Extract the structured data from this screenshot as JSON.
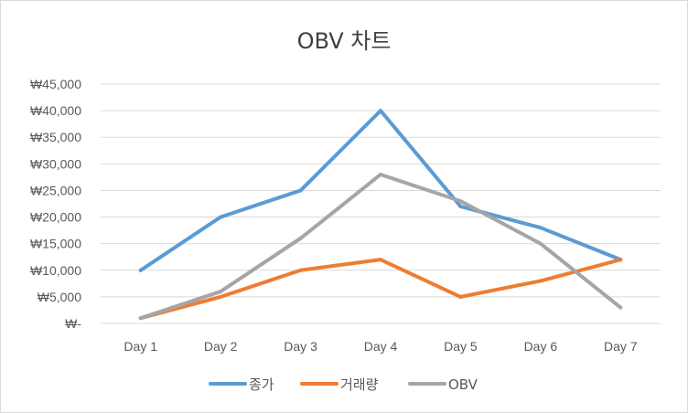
{
  "chart_data": {
    "type": "line",
    "title": "OBV 차트",
    "categories": [
      "Day 1",
      "Day 2",
      "Day 3",
      "Day 4",
      "Day 5",
      "Day 6",
      "Day 7"
    ],
    "y_tick_labels": [
      "₩-",
      "₩5,000",
      "₩10,000",
      "₩15,000",
      "₩20,000",
      "₩25,000",
      "₩30,000",
      "₩35,000",
      "₩40,000",
      "₩45,000"
    ],
    "ylim": [
      0,
      45000
    ],
    "grid": true,
    "legend_position": "bottom",
    "series": [
      {
        "name": "종가",
        "color": "#5b9bd5",
        "values": [
          10000,
          20000,
          25000,
          40000,
          22000,
          18000,
          12000
        ]
      },
      {
        "name": "거래량",
        "color": "#ed7d31",
        "values": [
          1000,
          5000,
          10000,
          12000,
          5000,
          8000,
          12000
        ]
      },
      {
        "name": "OBV",
        "color": "#a5a5a5",
        "values": [
          1000,
          6000,
          16000,
          28000,
          23000,
          15000,
          3000
        ]
      }
    ]
  }
}
